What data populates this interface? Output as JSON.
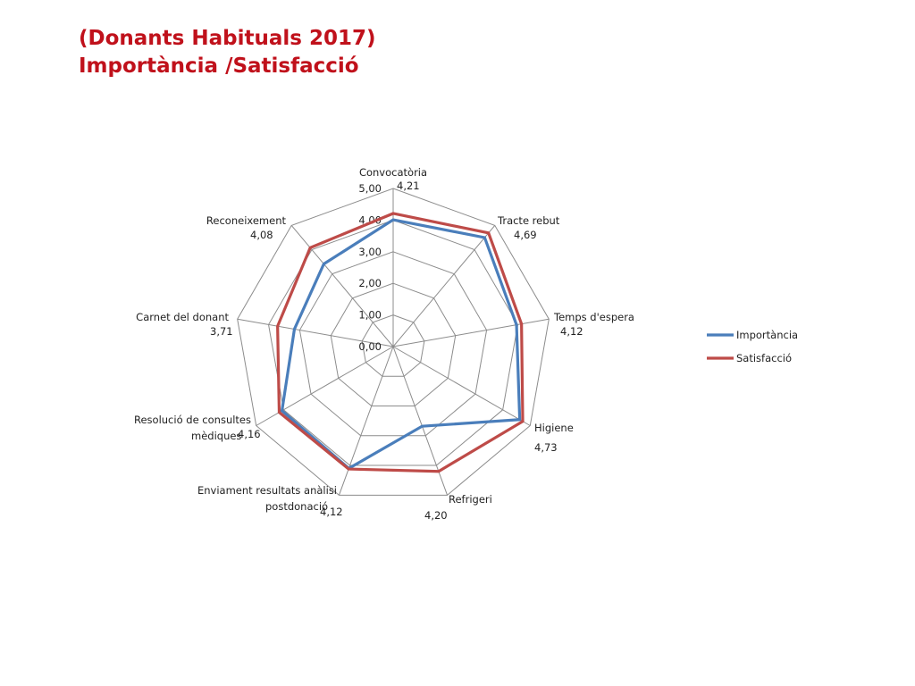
{
  "title": {
    "line1": "(Donants Habituals 2017)",
    "line2": "Importància /Satisfacció"
  },
  "chart_data": {
    "type": "radar",
    "categories": [
      "Convocatòria",
      "Tracte rebut",
      "Temps d'espera",
      "Higiene",
      "Refrigeri",
      "Enviament resultats anàlisi postdonació",
      "Resolució de consultes mèdiques",
      "Carnet del donant",
      "Reconeixement"
    ],
    "category_label_lines": [
      [
        "Convocatòria"
      ],
      [
        "Tracte rebut"
      ],
      [
        "Temps d'espera"
      ],
      [
        "Higiene"
      ],
      [
        "Refrigeri"
      ],
      [
        "Enviament resultats anàlisi",
        "postdonació"
      ],
      [
        "Resolució de consultes",
        "mèdiques"
      ],
      [
        "Carnet del donant"
      ],
      [
        "Reconeixement"
      ]
    ],
    "data_labels": [
      "4,21",
      "4,69",
      "4,12",
      "4,73",
      "4,20",
      "4,12",
      "4,16",
      "3,71",
      "4,08"
    ],
    "rlim": [
      0,
      5
    ],
    "ticks": [
      "0,00",
      "1,00",
      "2,00",
      "3,00",
      "4,00",
      "5,00"
    ],
    "series": [
      {
        "name": "Importància",
        "color": "#4a7ebb",
        "values": [
          4.01,
          4.5,
          3.96,
          4.62,
          2.68,
          4.1,
          4.06,
          3.17,
          3.41
        ]
      },
      {
        "name": "Satisfacció",
        "color": "#be4b48",
        "values": [
          4.21,
          4.69,
          4.12,
          4.73,
          4.2,
          4.12,
          4.16,
          3.71,
          4.08
        ]
      }
    ],
    "grid": true,
    "legend_position": "right"
  }
}
